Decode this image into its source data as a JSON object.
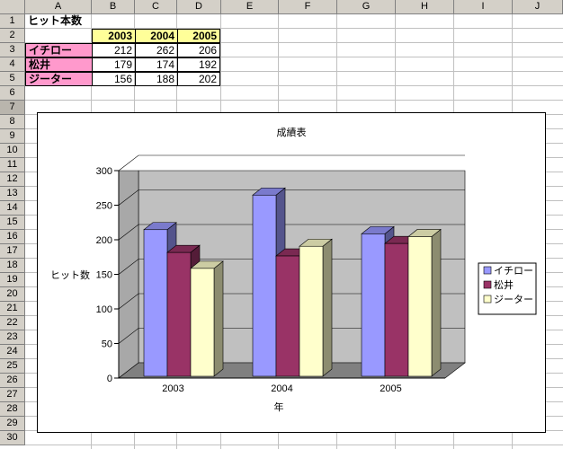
{
  "columns": [
    "A",
    "B",
    "C",
    "D",
    "E",
    "F",
    "G",
    "H",
    "I",
    "J"
  ],
  "rows": [
    "1",
    "2",
    "3",
    "4",
    "5",
    "6",
    "7",
    "8",
    "9",
    "10",
    "11",
    "12",
    "13",
    "14",
    "15",
    "16",
    "17",
    "18",
    "19",
    "20",
    "21",
    "22",
    "23",
    "24",
    "25",
    "26",
    "27",
    "28",
    "29",
    "30"
  ],
  "active_row": "7",
  "sheet": {
    "title": "ヒット本数",
    "years": [
      "2003",
      "2004",
      "2005"
    ],
    "players": [
      {
        "name": "イチロー",
        "values": [
          "212",
          "262",
          "206"
        ]
      },
      {
        "name": "松井",
        "values": [
          "179",
          "174",
          "192"
        ]
      },
      {
        "name": "ジーター",
        "values": [
          "156",
          "188",
          "202"
        ]
      }
    ]
  },
  "colors": {
    "ichiro": "#9999ff",
    "matsui": "#993366",
    "jeter": "#ffffcc",
    "plot_wall": "#c0c0c0",
    "floor": "#808080",
    "header_bg": "#d4d0c8",
    "year_fill": "#ffff99",
    "name_fill": "#ff99cc"
  },
  "chart_data": {
    "type": "bar",
    "title": "成績表",
    "xlabel": "年",
    "ylabel": "ヒット数",
    "categories": [
      "2003",
      "2004",
      "2005"
    ],
    "ylim": [
      0,
      300
    ],
    "yticks": [
      "0",
      "50",
      "100",
      "150",
      "200",
      "250",
      "300"
    ],
    "series": [
      {
        "name": "イチロー",
        "values": [
          212,
          262,
          206
        ]
      },
      {
        "name": "松井",
        "values": [
          179,
          174,
          192
        ]
      },
      {
        "name": "ジーター",
        "values": [
          156,
          188,
          202
        ]
      }
    ],
    "legend_position": "right",
    "grid": true,
    "style": "3d-clustered-column"
  }
}
